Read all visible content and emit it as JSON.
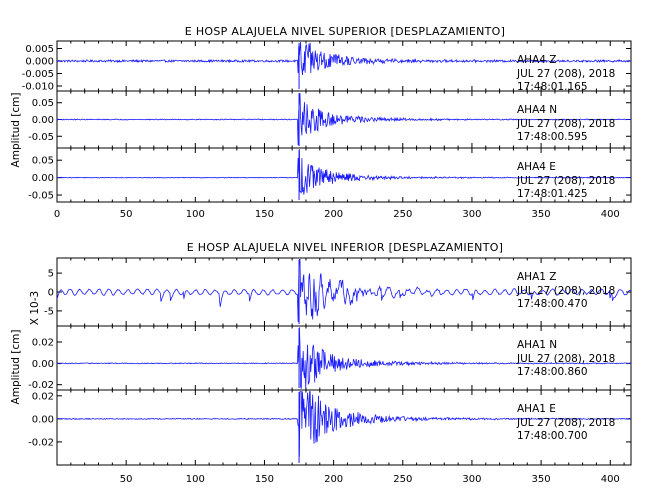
{
  "chart_data": [
    {
      "type": "line",
      "title": "E HOSP ALAJUELA NIVEL SUPERIOR [DESPLAZAMIENTO]",
      "ylabel": "Amplitud [cm]",
      "xlabel": "",
      "xlim": [
        0,
        415
      ],
      "xticks": [
        "0",
        "50",
        "100",
        "150",
        "200",
        "250",
        "300",
        "350",
        "400"
      ],
      "event_time_s": 175,
      "panels": [
        {
          "station": "AHA4",
          "channel": "Z",
          "date": "JUL 27 (208), 2018",
          "time": "17:48:01.165",
          "ylim": [
            -0.012,
            0.008
          ],
          "yticks": [
            "0.005",
            "0.000",
            "-0.005",
            "-0.010"
          ],
          "noise": 0.0004,
          "peak": 0.01
        },
        {
          "station": "AHA4",
          "channel": "N",
          "date": "JUL 27 (208), 2018",
          "time": "17:48:00.595",
          "ylim": [
            -0.085,
            0.085
          ],
          "yticks": [
            "0.05",
            "0.00",
            "-0.05"
          ],
          "noise": 0.0012,
          "peak": 0.065
        },
        {
          "station": "AHA4",
          "channel": "E",
          "date": "JUL 27 (208), 2018",
          "time": "17:48:01.425",
          "ylim": [
            -0.07,
            0.085
          ],
          "yticks": [
            "0.05",
            "0.00",
            "-0.05"
          ],
          "noise": 0.001,
          "peak": 0.065
        }
      ]
    },
    {
      "type": "line",
      "title": "E HOSP ALAJUELA NIVEL INFERIOR [DESPLAZAMIENTO]",
      "ylabel": "Amplitud [cm]",
      "scale_label": "X 10-3",
      "xlabel": "",
      "xlim": [
        0,
        415
      ],
      "xticks": [
        "50",
        "100",
        "150",
        "200",
        "250",
        "300",
        "350",
        "400"
      ],
      "event_time_s": 175,
      "panels": [
        {
          "station": "AHA1",
          "channel": "Z",
          "date": "JUL 27 (208), 2018",
          "time": "17:48:00.470",
          "ylim": [
            -9,
            9
          ],
          "yticks": [
            "5",
            "0",
            "-5"
          ],
          "noise": 0.5,
          "peak": 8
        },
        {
          "station": "AHA1",
          "channel": "N",
          "date": "JUL 27 (208), 2018",
          "time": "17:48:00.860",
          "ylim": [
            -0.025,
            0.035
          ],
          "yticks": [
            "0.02",
            "0.00",
            "-0.02"
          ],
          "noise": 0.0004,
          "peak": 0.032
        },
        {
          "station": "AHA1",
          "channel": "E",
          "date": "JUL 27 (208), 2018",
          "time": "17:48:00.700",
          "ylim": [
            -0.04,
            0.025
          ],
          "yticks": [
            "0.02",
            "0.00",
            "-0.02"
          ],
          "noise": 0.0004,
          "peak": 0.04
        }
      ]
    }
  ],
  "colors": {
    "trace": "#1a1aff",
    "axis": "#000000",
    "background": "#ffffff"
  }
}
